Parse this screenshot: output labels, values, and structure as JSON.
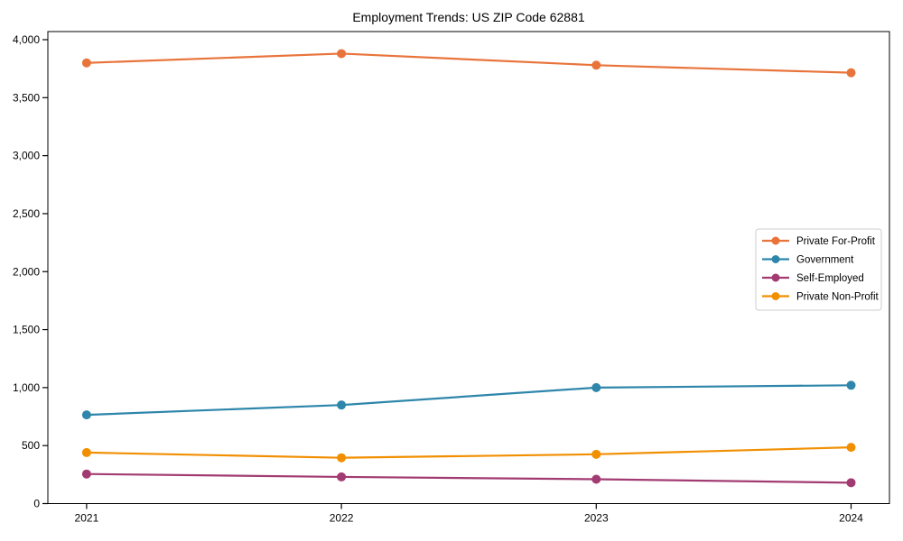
{
  "chart_data": {
    "type": "line",
    "title": "Employment Trends: US ZIP Code 62881",
    "x": [
      2021,
      2022,
      2023,
      2024
    ],
    "x_tick_labels": [
      "2021",
      "2022",
      "2023",
      "2024"
    ],
    "series": [
      {
        "name": "Private For-Profit",
        "color": "#E8743B",
        "values": [
          3800,
          3880,
          3780,
          3715
        ]
      },
      {
        "name": "Government",
        "color": "#2E86AB",
        "values": [
          765,
          850,
          1000,
          1020
        ]
      },
      {
        "name": "Self-Employed",
        "color": "#A23B72",
        "values": [
          255,
          230,
          210,
          180
        ]
      },
      {
        "name": "Private Non-Profit",
        "color": "#F18F01",
        "values": [
          440,
          395,
          425,
          485
        ]
      }
    ],
    "xlabel": "",
    "ylabel": "",
    "ylim": [
      0,
      4070
    ],
    "yticks": [
      0,
      500,
      1000,
      1500,
      2000,
      2500,
      3000,
      3500,
      4000
    ],
    "ytick_labels": [
      "0",
      "500",
      "1,000",
      "1,500",
      "2,000",
      "2,500",
      "3,000",
      "3,500",
      "4,000"
    ],
    "grid": false,
    "legend": {
      "position": "center right",
      "entries": [
        "Private For-Profit",
        "Government",
        "Self-Employed",
        "Private Non-Profit"
      ]
    },
    "style": {
      "axis_color": "#000000",
      "text_color": "#000000",
      "legend_border_color": "#cccccc",
      "background": "#ffffff",
      "line_width": 2.2,
      "marker_radius": 5
    }
  }
}
